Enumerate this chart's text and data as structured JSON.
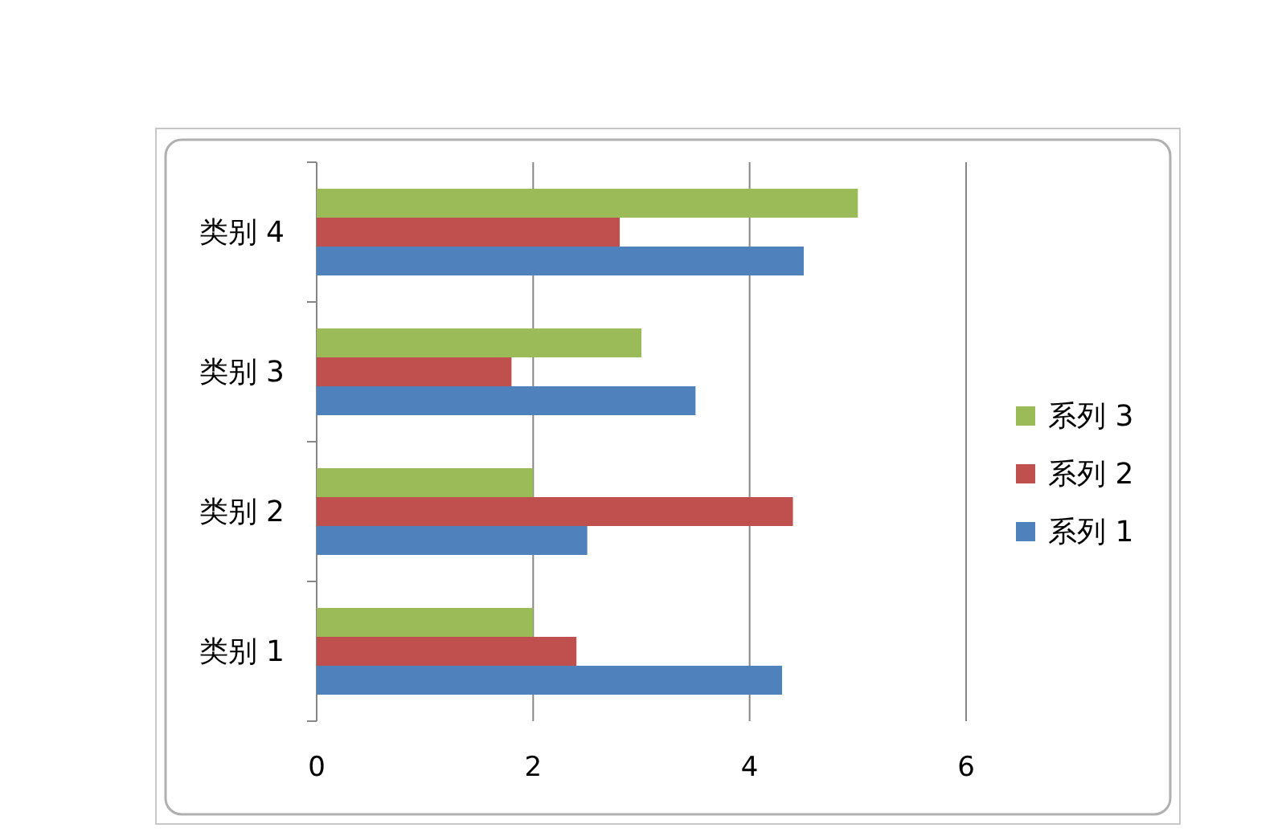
{
  "chart_data": {
    "type": "bar",
    "orientation": "horizontal",
    "categories": [
      "类别 4",
      "类别 3",
      "类别 2",
      "类别 1"
    ],
    "series": [
      {
        "name": "系列 1",
        "color": "#4f81bd",
        "values": [
          4.5,
          3.5,
          2.5,
          4.3
        ]
      },
      {
        "name": "系列 2",
        "color": "#c0504d",
        "values": [
          2.8,
          1.8,
          4.4,
          2.4
        ]
      },
      {
        "name": "系列 3",
        "color": "#9bbb59",
        "values": [
          5,
          3,
          2,
          2
        ]
      }
    ],
    "xlim": [
      0,
      6
    ],
    "xticks": [
      0,
      2,
      4,
      6
    ],
    "grid": "x",
    "legend": "right"
  }
}
